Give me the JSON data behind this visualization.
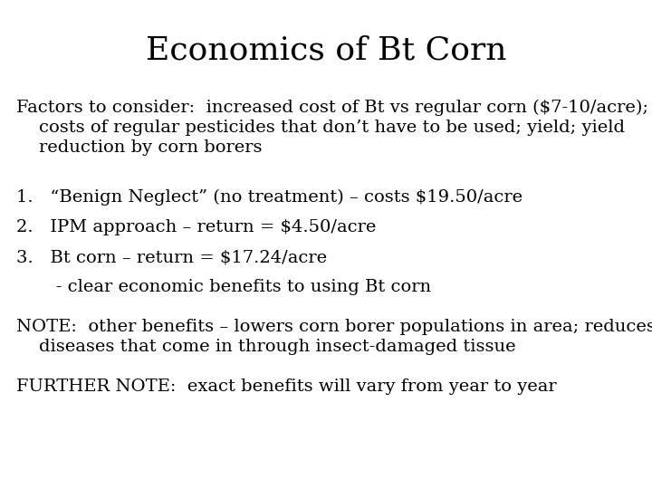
{
  "title": "Economics of Bt Corn",
  "background_color": "#ffffff",
  "text_color": "#000000",
  "title_fontsize": 26,
  "body_fontsize": 14,
  "font_family": "serif",
  "paragraph1_line1": "Factors to consider:  increased cost of Bt vs regular corn ($7-10/acre);",
  "paragraph1_line2": "    costs of regular pesticides that don’t have to be used; yield; yield",
  "paragraph1_line3": "    reduction by corn borers",
  "item1": "1.   “Benign Neglect” (no treatment) – costs $19.50/acre",
  "item2": "2.   IPM approach – return = $4.50/acre",
  "item3": "3.   Bt corn – return = $17.24/acre",
  "item4": "       - clear economic benefits to using Bt corn",
  "note1_line1": "NOTE:  other benefits – lowers corn borer populations in area; reduces",
  "note1_line2": "    diseases that come in through insect-damaged tissue",
  "note2": "FURTHER NOTE:  exact benefits will vary from year to year",
  "fig_width": 7.2,
  "fig_height": 5.4,
  "dpi": 100
}
